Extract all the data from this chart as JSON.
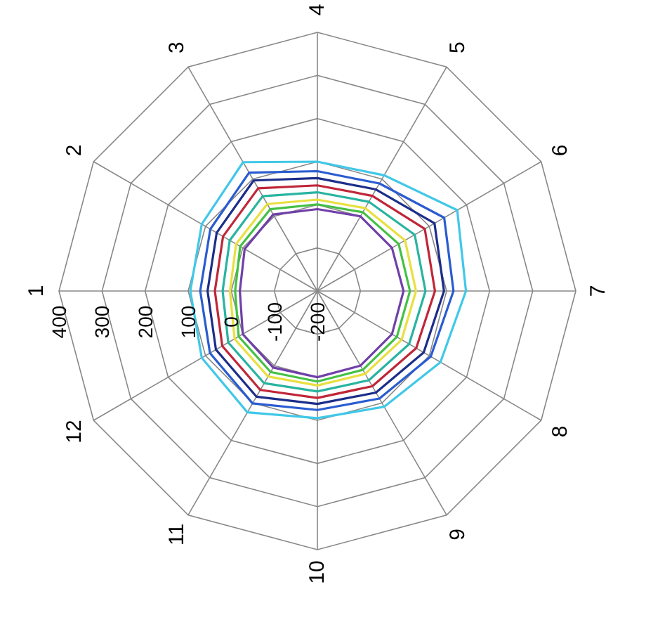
{
  "chart_data": {
    "type": "radar",
    "categories": [
      "4",
      "5",
      "6",
      "7",
      "8",
      "9",
      "10",
      "11",
      "12",
      "1",
      "2",
      "3"
    ],
    "ylim": [
      -200,
      400
    ],
    "yticks": [
      -200,
      -100,
      0,
      100,
      200,
      300,
      400
    ],
    "grid": true,
    "series": [
      {
        "color": "#40c8e8",
        "values": [
          100,
          110,
          175,
          145,
          130,
          110,
          95,
          125,
          110,
          95,
          110,
          145
        ]
      },
      {
        "color": "#2a5cd0",
        "values": [
          78,
          88,
          140,
          116,
          104,
          88,
          76,
          101,
          88,
          72,
          87,
          117
        ]
      },
      {
        "color": "#1c2e8a",
        "values": [
          62,
          72,
          114,
          94,
          85,
          72,
          62,
          83,
          72,
          55,
          70,
          96
        ]
      },
      {
        "color": "#c02638",
        "values": [
          45,
          55,
          88,
          73,
          65,
          55,
          48,
          65,
          55,
          38,
          53,
          75
        ]
      },
      {
        "color": "#28b4a0",
        "values": [
          29,
          39,
          61,
          51,
          46,
          39,
          33,
          47,
          39,
          20,
          35,
          54
        ]
      },
      {
        "color": "#e8e040",
        "values": [
          12,
          22,
          35,
          29,
          26,
          22,
          19,
          29,
          22,
          3,
          18,
          33
        ]
      },
      {
        "color": "#44c044",
        "values": [
          1,
          11,
          18,
          15,
          13,
          11,
          10,
          17,
          11,
          -9,
          7,
          19
        ]
      },
      {
        "color": "#7040a8",
        "values": [
          -10,
          0,
          0,
          0,
          0,
          0,
          0,
          5,
          0,
          -20,
          -5,
          5
        ]
      }
    ]
  }
}
